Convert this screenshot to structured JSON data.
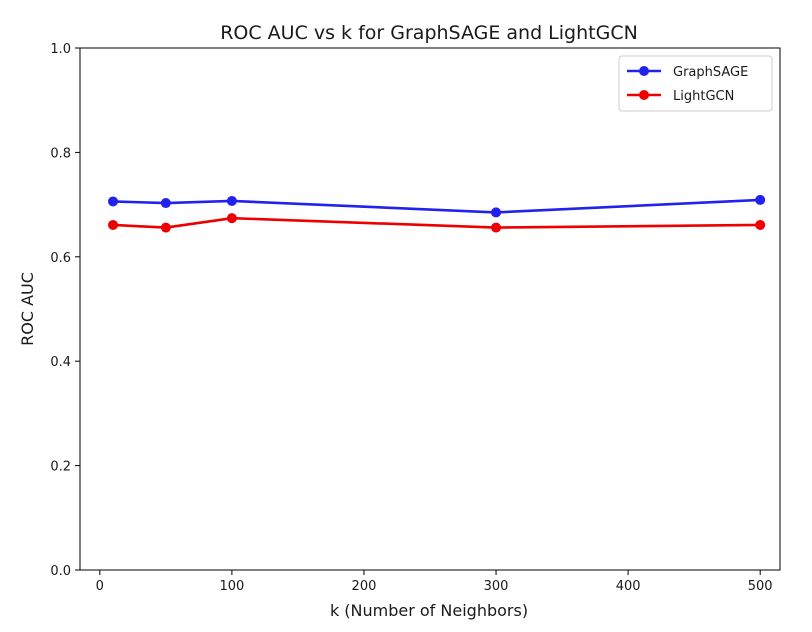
{
  "chart_data": {
    "type": "line",
    "title": "ROC AUC vs k for GraphSAGE and LightGCN",
    "xlabel": "k (Number of Neighbors)",
    "ylabel": "ROC AUC",
    "xlim": [
      -15,
      515
    ],
    "ylim": [
      0.0,
      1.0
    ],
    "x_ticks": [
      0,
      100,
      200,
      300,
      400,
      500
    ],
    "y_ticks": [
      0.0,
      0.2,
      0.4,
      0.6,
      0.8,
      1.0
    ],
    "x_tick_labels": [
      "0",
      "100",
      "200",
      "300",
      "400",
      "500"
    ],
    "y_tick_labels": [
      "0.0",
      "0.2",
      "0.4",
      "0.6",
      "0.8",
      "1.0"
    ],
    "grid": false,
    "legend_position": "top-right",
    "x": [
      10,
      50,
      100,
      300,
      500
    ],
    "series": [
      {
        "name": "GraphSAGE",
        "color": "#2222ee",
        "values": [
          0.706,
          0.703,
          0.707,
          0.685,
          0.709
        ]
      },
      {
        "name": "LightGCN",
        "color": "#ee0000",
        "values": [
          0.661,
          0.656,
          0.674,
          0.656,
          0.661
        ]
      }
    ]
  }
}
